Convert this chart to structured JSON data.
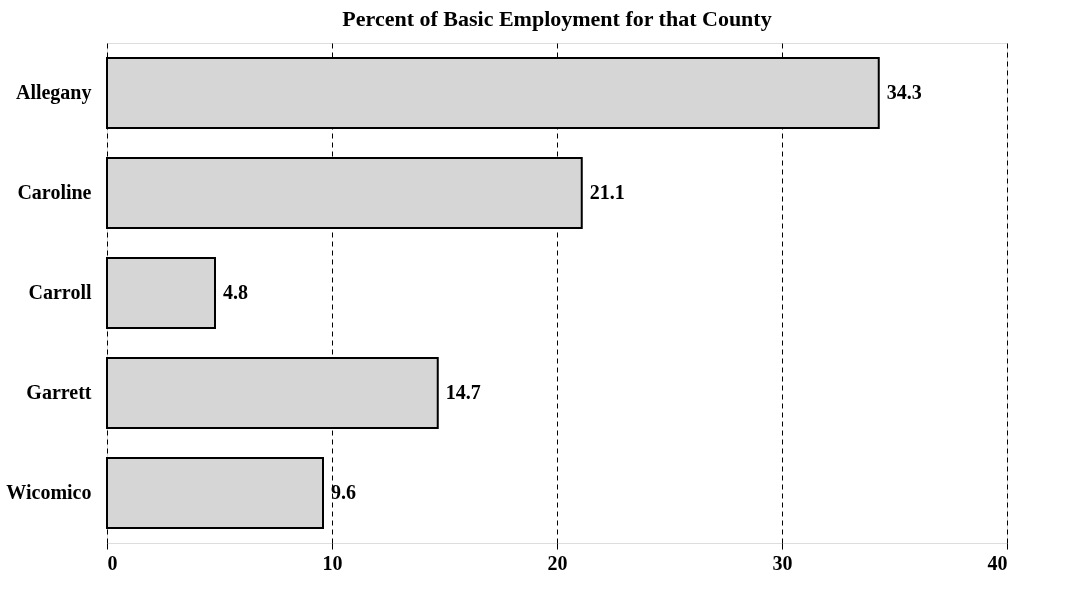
{
  "chart_data": {
    "type": "bar",
    "orientation": "horizontal",
    "title": "Percent of Basic Employment for that County",
    "categories": [
      "Allegany",
      "Caroline",
      "Carroll",
      "Garrett",
      "Wicomico"
    ],
    "values": [
      34.3,
      21.1,
      4.8,
      14.7,
      9.6
    ],
    "color": "#d6d6d6",
    "xlim": [
      0,
      40
    ],
    "xticks": [
      0,
      10,
      20,
      30,
      40
    ],
    "grid": "x",
    "data_labels": true
  }
}
